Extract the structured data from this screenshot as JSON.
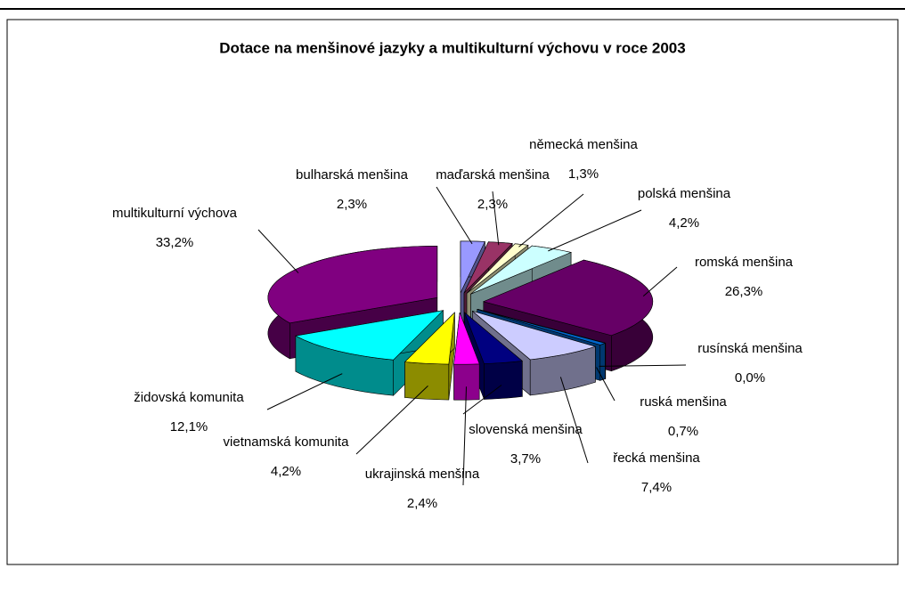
{
  "chart_data": {
    "type": "pie",
    "title": "Dotace na menšinové jazyky a multikulturní výchovu v roce 2003",
    "categories": [
      "bulharská menšina",
      "maďarská menšina",
      "německá menšina",
      "polská menšina",
      "romská menšina",
      "rusínská menšina",
      "ruská menšina",
      "řecká menšina",
      "slovenská menšina",
      "ukrajinská menšina",
      "vietnamská komunita",
      "židovská komunita",
      "multikulturní výchova"
    ],
    "values": [
      2.3,
      2.3,
      1.3,
      4.2,
      26.3,
      0.0,
      0.7,
      7.4,
      3.7,
      2.4,
      4.2,
      12.1,
      33.2
    ],
    "value_labels": [
      "2,3%",
      "2,3%",
      "1,3%",
      "4,2%",
      "26,3%",
      "0,0%",
      "0,7%",
      "7,4%",
      "3,7%",
      "2,4%",
      "4,2%",
      "12,1%",
      "33,2%"
    ],
    "colors": [
      "#9999ff",
      "#993366",
      "#ffffcc",
      "#ccffff",
      "#660066",
      "#ff8080",
      "#0066cc",
      "#ccccff",
      "#000080",
      "#ff00ff",
      "#ffff00",
      "#00ffff",
      "#800080"
    ]
  }
}
